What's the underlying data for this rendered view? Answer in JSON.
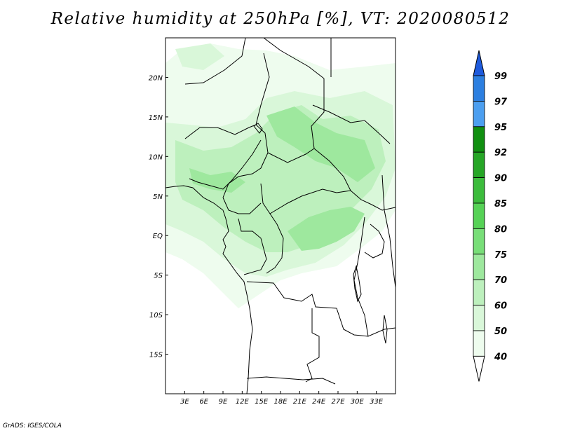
{
  "title": "Relative humidity at 250hPa [%], VT: 2020080512",
  "credit": "GrADS: IGES/COLA",
  "map": {
    "lon_range": [
      0,
      36
    ],
    "lat_range": [
      -20,
      25
    ],
    "lon_ticks": [
      "3E",
      "6E",
      "9E",
      "12E",
      "15E",
      "18E",
      "21E",
      "24E",
      "27E",
      "30E",
      "33E"
    ],
    "lat_ticks": [
      "20N",
      "15N",
      "10N",
      "5N",
      "EQ",
      "5S",
      "10S",
      "15S"
    ]
  },
  "colorbar": {
    "levels": [
      "99",
      "97",
      "95",
      "92",
      "90",
      "85",
      "80",
      "75",
      "70",
      "60",
      "50",
      "40"
    ],
    "colors": [
      "#1e5adc",
      "#2c7fe0",
      "#4c9ff0",
      "#108f10",
      "#26a626",
      "#3cbc3c",
      "#56d256",
      "#78de78",
      "#9ee89e",
      "#bdf0bd",
      "#d9f7d9",
      "#eefcee"
    ]
  }
}
